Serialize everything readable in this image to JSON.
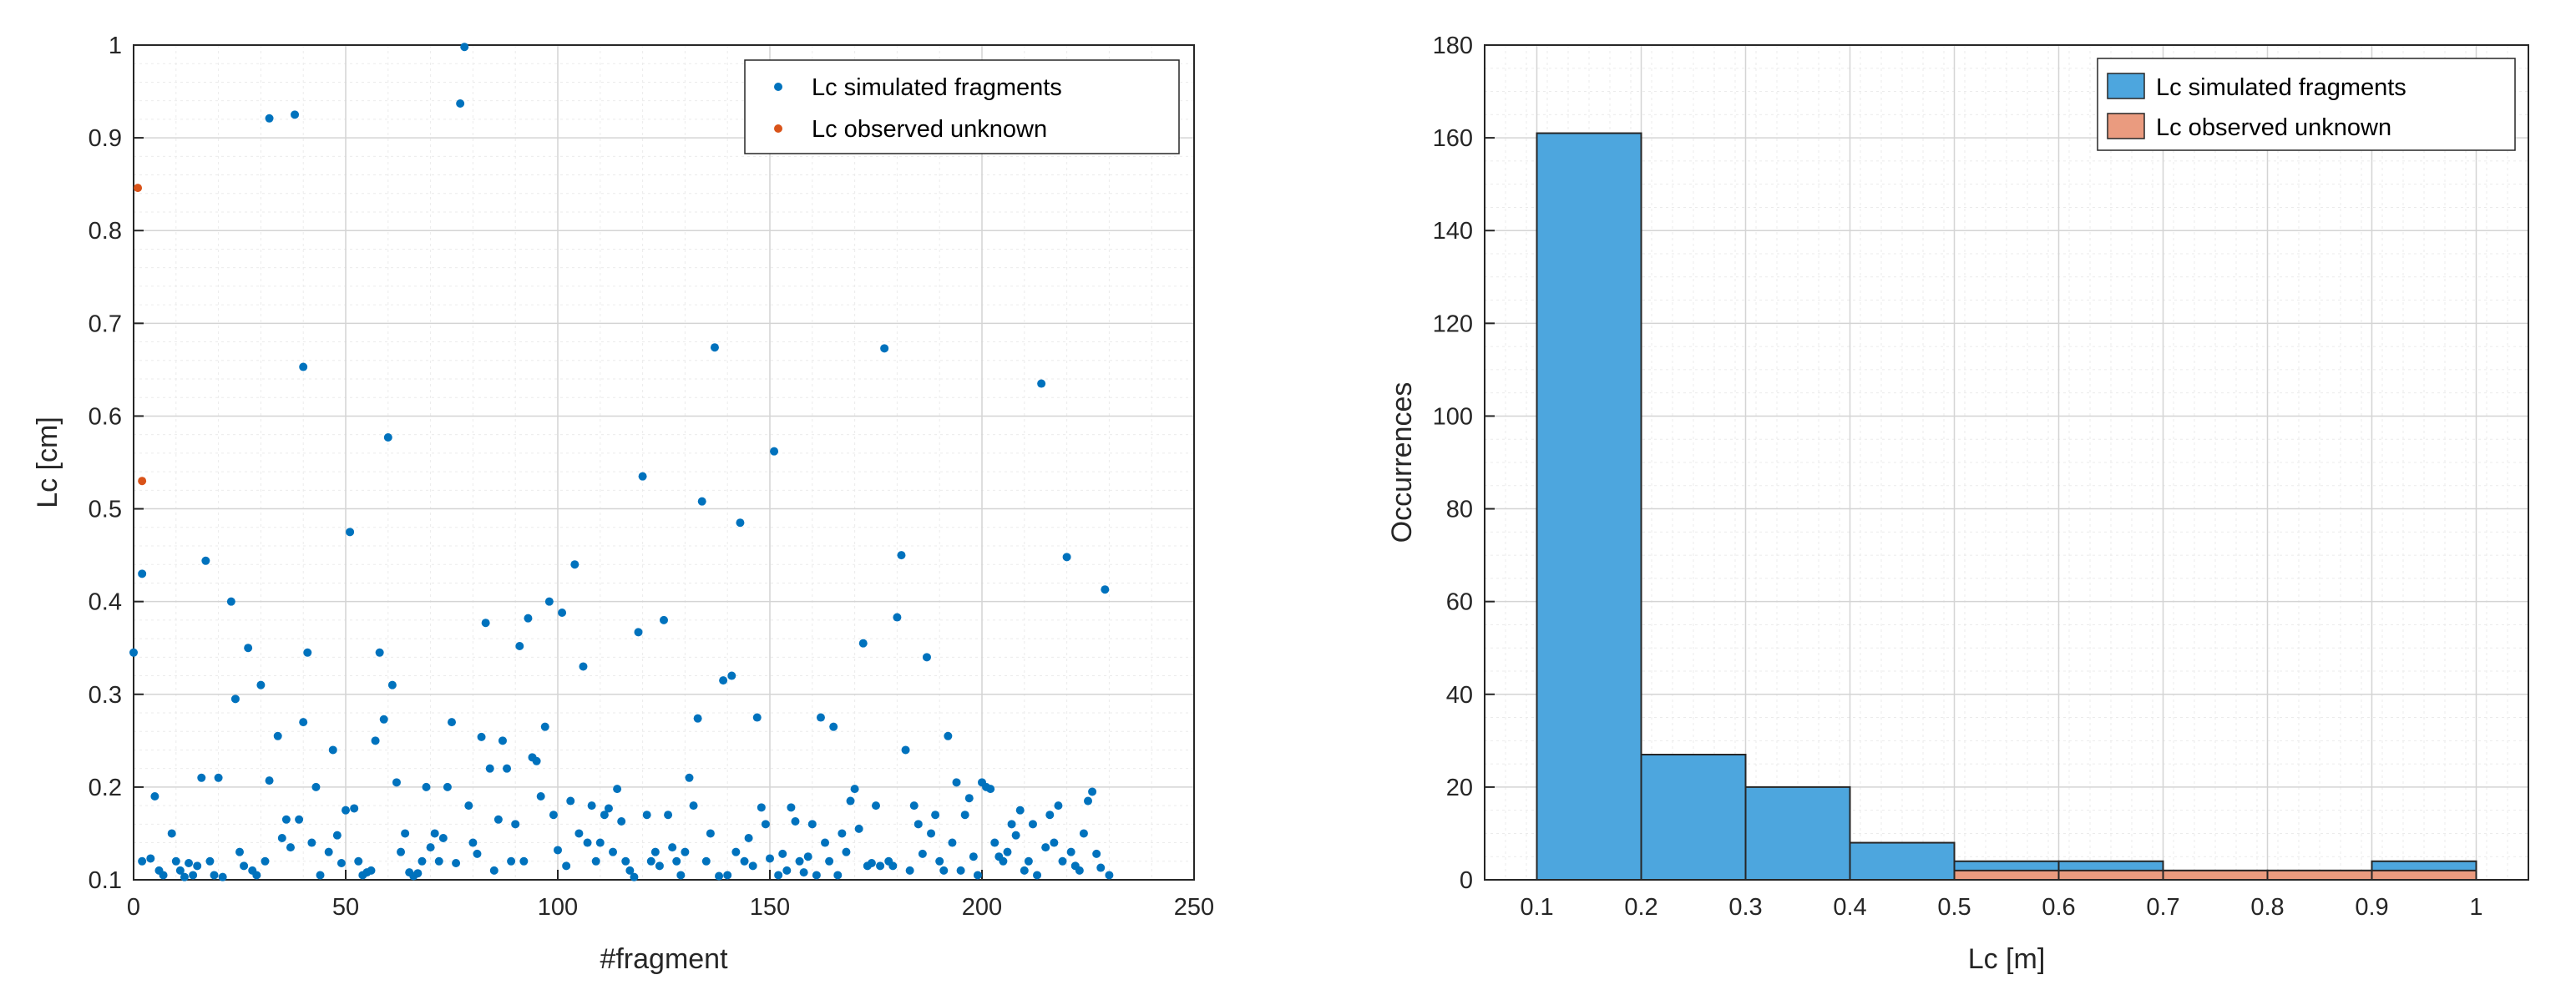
{
  "chart_data": [
    {
      "type": "scatter",
      "xlabel": "#fragment",
      "ylabel": "Lc [cm]",
      "xlim": [
        0,
        250
      ],
      "ylim": [
        0.1,
        1
      ],
      "xticks": [
        "0",
        "50",
        "100",
        "150",
        "200",
        "250"
      ],
      "yticks": [
        "0.1",
        "0.2",
        "0.3",
        "0.4",
        "0.5",
        "0.6",
        "0.7",
        "0.8",
        "0.9",
        "1"
      ],
      "grid": true,
      "legend_position": "top-right",
      "series": [
        {
          "name": "Lc simulated fragments",
          "color": "#0072BD",
          "points": [
            [
              0,
              0.345
            ],
            [
              2,
              0.43
            ],
            [
              2,
              0.12
            ],
            [
              4,
              0.123
            ],
            [
              5,
              0.19
            ],
            [
              6,
              0.11
            ],
            [
              7,
              0.105
            ],
            [
              9,
              0.15
            ],
            [
              10,
              0.12
            ],
            [
              11,
              0.11
            ],
            [
              12,
              0.103
            ],
            [
              13,
              0.118
            ],
            [
              14,
              0.105
            ],
            [
              15,
              0.115
            ],
            [
              16,
              0.21
            ],
            [
              17,
              0.444
            ],
            [
              18,
              0.12
            ],
            [
              19,
              0.105
            ],
            [
              20,
              0.21
            ],
            [
              21,
              0.103
            ],
            [
              23,
              0.4
            ],
            [
              24,
              0.295
            ],
            [
              25,
              0.13
            ],
            [
              26,
              0.115
            ],
            [
              27,
              0.35
            ],
            [
              28,
              0.11
            ],
            [
              29,
              0.105
            ],
            [
              30,
              0.31
            ],
            [
              31,
              0.12
            ],
            [
              32,
              0.207
            ],
            [
              32,
              0.921
            ],
            [
              34,
              0.255
            ],
            [
              35,
              0.145
            ],
            [
              36,
              0.165
            ],
            [
              37,
              0.135
            ],
            [
              38,
              0.925
            ],
            [
              39,
              0.165
            ],
            [
              40,
              0.653
            ],
            [
              40,
              0.27
            ],
            [
              41,
              0.345
            ],
            [
              42,
              0.14
            ],
            [
              43,
              0.2
            ],
            [
              44,
              0.105
            ],
            [
              46,
              0.13
            ],
            [
              47,
              0.24
            ],
            [
              48,
              0.148
            ],
            [
              49,
              0.118
            ],
            [
              50,
              0.175
            ],
            [
              51,
              0.475
            ],
            [
              52,
              0.177
            ],
            [
              53,
              0.12
            ],
            [
              54,
              0.105
            ],
            [
              55,
              0.108
            ],
            [
              56,
              0.11
            ],
            [
              57,
              0.25
            ],
            [
              58,
              0.345
            ],
            [
              59,
              0.273
            ],
            [
              60,
              0.577
            ],
            [
              61,
              0.31
            ],
            [
              62,
              0.205
            ],
            [
              63,
              0.13
            ],
            [
              64,
              0.15
            ],
            [
              65,
              0.108
            ],
            [
              66,
              0.104
            ],
            [
              67,
              0.107
            ],
            [
              68,
              0.12
            ],
            [
              69,
              0.2
            ],
            [
              70,
              0.135
            ],
            [
              71,
              0.15
            ],
            [
              72,
              0.12
            ],
            [
              73,
              0.145
            ],
            [
              74,
              0.2
            ],
            [
              75,
              0.27
            ],
            [
              76,
              0.118
            ],
            [
              77,
              0.937
            ],
            [
              78,
              0.998
            ],
            [
              79,
              0.18
            ],
            [
              80,
              0.14
            ],
            [
              81,
              0.128
            ],
            [
              82,
              0.254
            ],
            [
              83,
              0.377
            ],
            [
              84,
              0.22
            ],
            [
              85,
              0.11
            ],
            [
              86,
              0.165
            ],
            [
              87,
              0.25
            ],
            [
              88,
              0.22
            ],
            [
              89,
              0.12
            ],
            [
              90,
              0.16
            ],
            [
              91,
              0.352
            ],
            [
              92,
              0.12
            ],
            [
              93,
              0.382
            ],
            [
              94,
              0.232
            ],
            [
              95,
              0.228
            ],
            [
              96,
              0.19
            ],
            [
              97,
              0.265
            ],
            [
              98,
              0.4
            ],
            [
              99,
              0.17
            ],
            [
              100,
              0.132
            ],
            [
              101,
              0.388
            ],
            [
              102,
              0.115
            ],
            [
              103,
              0.185
            ],
            [
              104,
              0.44
            ],
            [
              105,
              0.15
            ],
            [
              106,
              0.33
            ],
            [
              107,
              0.14
            ],
            [
              108,
              0.18
            ],
            [
              109,
              0.12
            ],
            [
              110,
              0.14
            ],
            [
              111,
              0.17
            ],
            [
              112,
              0.177
            ],
            [
              113,
              0.13
            ],
            [
              114,
              0.198
            ],
            [
              115,
              0.163
            ],
            [
              116,
              0.12
            ],
            [
              117,
              0.11
            ],
            [
              118,
              0.103
            ],
            [
              119,
              0.367
            ],
            [
              120,
              0.535
            ],
            [
              121,
              0.17
            ],
            [
              122,
              0.12
            ],
            [
              123,
              0.13
            ],
            [
              124,
              0.115
            ],
            [
              125,
              0.38
            ],
            [
              126,
              0.17
            ],
            [
              127,
              0.135
            ],
            [
              128,
              0.12
            ],
            [
              129,
              0.105
            ],
            [
              130,
              0.13
            ],
            [
              131,
              0.21
            ],
            [
              132,
              0.18
            ],
            [
              133,
              0.274
            ],
            [
              134,
              0.508
            ],
            [
              135,
              0.12
            ],
            [
              136,
              0.15
            ],
            [
              137,
              0.674
            ],
            [
              138,
              0.104
            ],
            [
              139,
              0.315
            ],
            [
              140,
              0.105
            ],
            [
              141,
              0.32
            ],
            [
              142,
              0.13
            ],
            [
              143,
              0.485
            ],
            [
              144,
              0.12
            ],
            [
              145,
              0.145
            ],
            [
              146,
              0.115
            ],
            [
              147,
              0.275
            ],
            [
              148,
              0.178
            ],
            [
              149,
              0.16
            ],
            [
              150,
              0.123
            ],
            [
              151,
              0.562
            ],
            [
              152,
              0.105
            ],
            [
              153,
              0.128
            ],
            [
              154,
              0.11
            ],
            [
              155,
              0.178
            ],
            [
              156,
              0.163
            ],
            [
              157,
              0.12
            ],
            [
              158,
              0.108
            ],
            [
              159,
              0.125
            ],
            [
              160,
              0.16
            ],
            [
              161,
              0.105
            ],
            [
              162,
              0.275
            ],
            [
              163,
              0.14
            ],
            [
              164,
              0.12
            ],
            [
              165,
              0.265
            ],
            [
              166,
              0.105
            ],
            [
              167,
              0.15
            ],
            [
              168,
              0.13
            ],
            [
              169,
              0.185
            ],
            [
              170,
              0.198
            ],
            [
              171,
              0.155
            ],
            [
              172,
              0.355
            ],
            [
              173,
              0.115
            ],
            [
              174,
              0.118
            ],
            [
              175,
              0.18
            ],
            [
              176,
              0.115
            ],
            [
              177,
              0.673
            ],
            [
              178,
              0.12
            ],
            [
              179,
              0.115
            ],
            [
              180,
              0.383
            ],
            [
              181,
              0.45
            ],
            [
              182,
              0.24
            ],
            [
              183,
              0.11
            ],
            [
              184,
              0.18
            ],
            [
              185,
              0.16
            ],
            [
              186,
              0.128
            ],
            [
              187,
              0.34
            ],
            [
              188,
              0.15
            ],
            [
              189,
              0.17
            ],
            [
              190,
              0.12
            ],
            [
              191,
              0.11
            ],
            [
              192,
              0.255
            ],
            [
              193,
              0.14
            ],
            [
              194,
              0.205
            ],
            [
              195,
              0.11
            ],
            [
              196,
              0.17
            ],
            [
              197,
              0.188
            ],
            [
              198,
              0.125
            ],
            [
              199,
              0.105
            ],
            [
              200,
              0.205
            ],
            [
              201,
              0.2
            ],
            [
              202,
              0.198
            ],
            [
              203,
              0.14
            ],
            [
              204,
              0.125
            ],
            [
              205,
              0.12
            ],
            [
              206,
              0.13
            ],
            [
              207,
              0.16
            ],
            [
              208,
              0.148
            ],
            [
              209,
              0.175
            ],
            [
              210,
              0.11
            ],
            [
              211,
              0.12
            ],
            [
              212,
              0.16
            ],
            [
              213,
              0.105
            ],
            [
              214,
              0.635
            ],
            [
              215,
              0.135
            ],
            [
              216,
              0.17
            ],
            [
              217,
              0.14
            ],
            [
              218,
              0.18
            ],
            [
              219,
              0.12
            ],
            [
              220,
              0.448
            ],
            [
              221,
              0.13
            ],
            [
              222,
              0.115
            ],
            [
              223,
              0.11
            ],
            [
              224,
              0.15
            ],
            [
              225,
              0.185
            ],
            [
              226,
              0.195
            ],
            [
              227,
              0.128
            ],
            [
              228,
              0.113
            ],
            [
              229,
              0.413
            ],
            [
              230,
              0.105
            ]
          ]
        },
        {
          "name": "Lc observed unknown",
          "color": "#D95319",
          "points": [
            [
              1,
              0.846
            ],
            [
              2,
              0.53
            ]
          ]
        }
      ]
    },
    {
      "type": "bar",
      "xlabel": "Lc [m]",
      "ylabel": "Occurrences",
      "xlim": [
        0.05,
        1.05
      ],
      "ylim": [
        0,
        180
      ],
      "xticks": [
        "0.1",
        "0.2",
        "0.3",
        "0.4",
        "0.5",
        "0.6",
        "0.7",
        "0.8",
        "0.9",
        "1"
      ],
      "yticks": [
        "0",
        "20",
        "40",
        "60",
        "80",
        "100",
        "120",
        "140",
        "160",
        "180"
      ],
      "bin_edges": [
        0.1,
        0.2,
        0.3,
        0.4,
        0.5,
        0.6,
        0.7,
        0.8,
        0.9,
        1.0
      ],
      "grid": true,
      "legend_position": "top-right",
      "series": [
        {
          "name": "Lc simulated fragments",
          "color": "#0072BD",
          "values": [
            161,
            27,
            20,
            8,
            4,
            4,
            2,
            2,
            4
          ]
        },
        {
          "name": "Lc observed unknown",
          "color": "#D95319",
          "values": [
            0,
            0,
            0,
            0,
            2,
            2,
            2,
            2,
            2
          ]
        }
      ]
    }
  ]
}
